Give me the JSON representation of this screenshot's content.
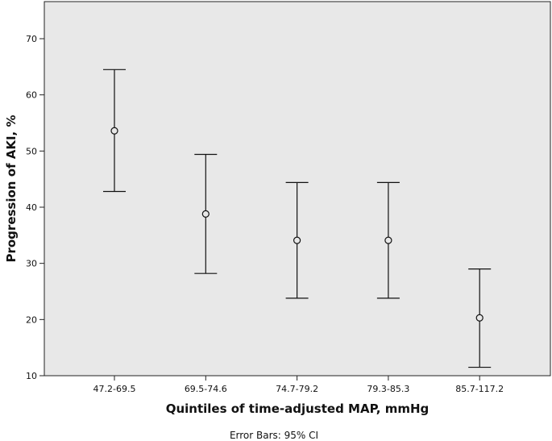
{
  "chart_data": {
    "type": "errorbar",
    "xlabel": "Quintiles of time-adjusted MAP, mmHg",
    "ylabel": "Progression of AKI, %",
    "footnote": "Error Bars: 95% CI",
    "categories": [
      "47.2-69.5",
      "69.5-74.6",
      "74.7-79.2",
      "79.3-85.3",
      "85.7-117.2"
    ],
    "values": [
      53.6,
      38.8,
      34.1,
      34.1,
      20.3
    ],
    "ci_lower": [
      42.8,
      28.2,
      23.8,
      23.8,
      11.5
    ],
    "ci_upper": [
      64.5,
      49.4,
      44.4,
      44.4,
      29.0
    ],
    "yticks": [
      10,
      20,
      30,
      40,
      50,
      60,
      70
    ],
    "ylim": [
      10,
      75
    ],
    "grid": false,
    "plot_background": "#e8e8e8"
  }
}
